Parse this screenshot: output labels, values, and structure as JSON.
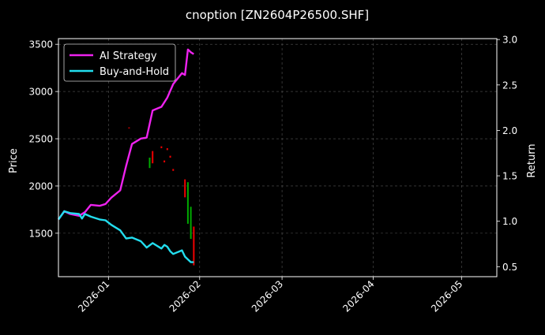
{
  "chart_data": {
    "type": "line",
    "title": "cnoption [ZN2604P26500.SHF]",
    "ylabel_left": "Price",
    "ylabel_right": "Return",
    "xlim": [
      "2025-12-15",
      "2026-05-13"
    ],
    "ylim_left": [
      1040,
      3560
    ],
    "ylim_right": [
      0.39,
      3.01
    ],
    "x_ticks": [
      "2026-01",
      "2026-02",
      "2026-03",
      "2026-04",
      "2026-05"
    ],
    "y_ticks_left": [
      1500,
      2000,
      2500,
      3000,
      3500
    ],
    "y_ticks_right": [
      0.5,
      1.0,
      1.5,
      2.0,
      2.5,
      3.0
    ],
    "grid": true,
    "legend_position": "top-left",
    "series": [
      {
        "name": "AI Strategy",
        "color": "#ee22ee",
        "axis": "right",
        "x": [
          "2025-12-15",
          "2025-12-17",
          "2025-12-19",
          "2025-12-22",
          "2025-12-24",
          "2025-12-26",
          "2025-12-29",
          "2025-12-31",
          "2026-01-02",
          "2026-01-05",
          "2026-01-07",
          "2026-01-09",
          "2026-01-12",
          "2026-01-14",
          "2026-01-16",
          "2026-01-19",
          "2026-01-21",
          "2026-01-23",
          "2026-01-26",
          "2026-01-27",
          "2026-01-28",
          "2026-01-29",
          "2026-01-30"
        ],
        "values": [
          1.02,
          1.11,
          1.08,
          1.06,
          1.1,
          1.18,
          1.17,
          1.19,
          1.26,
          1.34,
          1.61,
          1.85,
          1.91,
          1.92,
          2.22,
          2.26,
          2.36,
          2.51,
          2.63,
          2.61,
          2.89,
          2.86,
          2.84
        ]
      },
      {
        "name": "Buy-and-Hold",
        "color": "#22ddee",
        "axis": "right",
        "x": [
          "2025-12-15",
          "2025-12-17",
          "2025-12-19",
          "2025-12-22",
          "2025-12-23",
          "2025-12-24",
          "2025-12-26",
          "2025-12-29",
          "2025-12-31",
          "2026-01-02",
          "2026-01-05",
          "2026-01-07",
          "2026-01-09",
          "2026-01-12",
          "2026-01-14",
          "2026-01-16",
          "2026-01-19",
          "2026-01-20",
          "2026-01-21",
          "2026-01-22",
          "2026-01-23",
          "2026-01-26",
          "2026-01-27",
          "2026-01-28",
          "2026-01-29",
          "2026-01-30"
        ],
        "values": [
          1.02,
          1.11,
          1.09,
          1.08,
          1.03,
          1.08,
          1.05,
          1.02,
          1.01,
          0.96,
          0.9,
          0.81,
          0.82,
          0.78,
          0.71,
          0.76,
          0.7,
          0.74,
          0.72,
          0.67,
          0.64,
          0.68,
          0.61,
          0.58,
          0.55,
          0.55
        ]
      }
    ],
    "candles": {
      "axis": "left",
      "up_color": "#00aa00",
      "down_color": "#ee0000",
      "items": [
        {
          "date": "2026-01-08",
          "low": 2610,
          "high": 2620,
          "up": false
        },
        {
          "date": "2026-01-15",
          "low": 2190,
          "high": 2300,
          "up": true
        },
        {
          "date": "2026-01-16",
          "low": 2240,
          "high": 2370,
          "up": false
        },
        {
          "date": "2026-01-19",
          "low": 2400,
          "high": 2420,
          "up": false
        },
        {
          "date": "2026-01-20",
          "low": 2250,
          "high": 2270,
          "up": false
        },
        {
          "date": "2026-01-21",
          "low": 2380,
          "high": 2400,
          "up": false
        },
        {
          "date": "2026-01-22",
          "low": 2300,
          "high": 2320,
          "up": false
        },
        {
          "date": "2026-01-23",
          "low": 2160,
          "high": 2180,
          "up": false
        },
        {
          "date": "2026-01-27",
          "low": 1880,
          "high": 2070,
          "up": false
        },
        {
          "date": "2026-01-28",
          "low": 1600,
          "high": 2040,
          "up": true
        },
        {
          "date": "2026-01-29",
          "low": 1440,
          "high": 1780,
          "up": true
        },
        {
          "date": "2026-01-30",
          "low": 1160,
          "high": 1570,
          "up": false
        }
      ]
    }
  }
}
